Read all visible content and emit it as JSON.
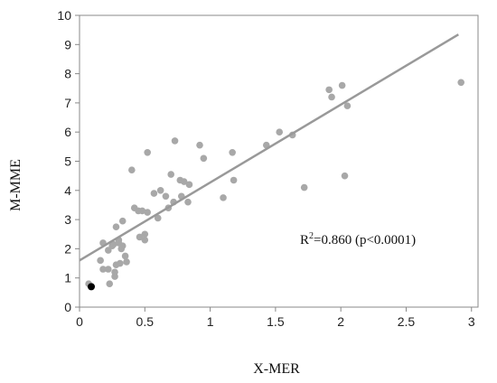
{
  "chart_data": {
    "type": "scatter",
    "title": "",
    "xlabel": "X-MER",
    "ylabel": "M-MME",
    "xlim": [
      0,
      3.05
    ],
    "ylim": [
      0,
      10
    ],
    "x_ticks": [
      "0",
      "0.5",
      "1",
      "1.5",
      "2",
      "2.5",
      "3"
    ],
    "x_tick_values": [
      0,
      0.5,
      1,
      1.5,
      2,
      2.5,
      3
    ],
    "y_ticks": [
      "0",
      "1",
      "2",
      "3",
      "4",
      "5",
      "6",
      "7",
      "8",
      "9",
      "10"
    ],
    "y_tick_values": [
      0,
      1,
      2,
      3,
      4,
      5,
      6,
      7,
      8,
      9,
      10
    ],
    "grid": false,
    "legend": "none",
    "annotation": {
      "prefix": "R",
      "superscript": "2",
      "suffix": "=0.860 (p<0.0001)"
    },
    "regression_line": {
      "intercept": 1.6,
      "slope": 2.67,
      "x_start": 0,
      "x_end": 2.9
    },
    "colors": {
      "points": "#a8a8a8",
      "highlight": "#000000",
      "line": "#999999",
      "frame": "#888888"
    },
    "points": [
      {
        "x": 0.07,
        "y": 0.8
      },
      {
        "x": 0.16,
        "y": 1.6
      },
      {
        "x": 0.18,
        "y": 2.2
      },
      {
        "x": 0.18,
        "y": 1.3
      },
      {
        "x": 0.22,
        "y": 1.95
      },
      {
        "x": 0.22,
        "y": 1.3
      },
      {
        "x": 0.23,
        "y": 0.8
      },
      {
        "x": 0.25,
        "y": 2.1
      },
      {
        "x": 0.26,
        "y": 2.15
      },
      {
        "x": 0.27,
        "y": 1.05
      },
      {
        "x": 0.27,
        "y": 1.2
      },
      {
        "x": 0.28,
        "y": 2.75
      },
      {
        "x": 0.28,
        "y": 1.45
      },
      {
        "x": 0.3,
        "y": 2.3
      },
      {
        "x": 0.3,
        "y": 2.2
      },
      {
        "x": 0.31,
        "y": 1.5
      },
      {
        "x": 0.32,
        "y": 2.0
      },
      {
        "x": 0.33,
        "y": 2.1
      },
      {
        "x": 0.33,
        "y": 2.95
      },
      {
        "x": 0.35,
        "y": 1.75
      },
      {
        "x": 0.36,
        "y": 1.55
      },
      {
        "x": 0.4,
        "y": 4.7
      },
      {
        "x": 0.42,
        "y": 3.4
      },
      {
        "x": 0.45,
        "y": 3.3
      },
      {
        "x": 0.46,
        "y": 2.4
      },
      {
        "x": 0.48,
        "y": 3.3
      },
      {
        "x": 0.5,
        "y": 2.3
      },
      {
        "x": 0.5,
        "y": 2.5
      },
      {
        "x": 0.52,
        "y": 5.3
      },
      {
        "x": 0.52,
        "y": 3.25
      },
      {
        "x": 0.57,
        "y": 3.9
      },
      {
        "x": 0.6,
        "y": 3.05
      },
      {
        "x": 0.62,
        "y": 4.0
      },
      {
        "x": 0.66,
        "y": 3.8
      },
      {
        "x": 0.68,
        "y": 3.4
      },
      {
        "x": 0.7,
        "y": 4.55
      },
      {
        "x": 0.72,
        "y": 3.6
      },
      {
        "x": 0.73,
        "y": 5.7
      },
      {
        "x": 0.77,
        "y": 4.35
      },
      {
        "x": 0.78,
        "y": 3.8
      },
      {
        "x": 0.8,
        "y": 4.3
      },
      {
        "x": 0.83,
        "y": 3.6
      },
      {
        "x": 0.84,
        "y": 4.2
      },
      {
        "x": 0.92,
        "y": 5.55
      },
      {
        "x": 0.95,
        "y": 5.1
      },
      {
        "x": 1.1,
        "y": 3.75
      },
      {
        "x": 1.17,
        "y": 5.3
      },
      {
        "x": 1.18,
        "y": 4.35
      },
      {
        "x": 1.43,
        "y": 5.55
      },
      {
        "x": 1.53,
        "y": 6.0
      },
      {
        "x": 1.63,
        "y": 5.9
      },
      {
        "x": 1.72,
        "y": 4.1
      },
      {
        "x": 1.91,
        "y": 7.45
      },
      {
        "x": 1.93,
        "y": 7.2
      },
      {
        "x": 2.01,
        "y": 7.6
      },
      {
        "x": 2.03,
        "y": 4.5
      },
      {
        "x": 2.05,
        "y": 6.9
      },
      {
        "x": 2.92,
        "y": 7.7
      }
    ],
    "highlight_points": [
      {
        "x": 0.09,
        "y": 0.7
      }
    ]
  }
}
